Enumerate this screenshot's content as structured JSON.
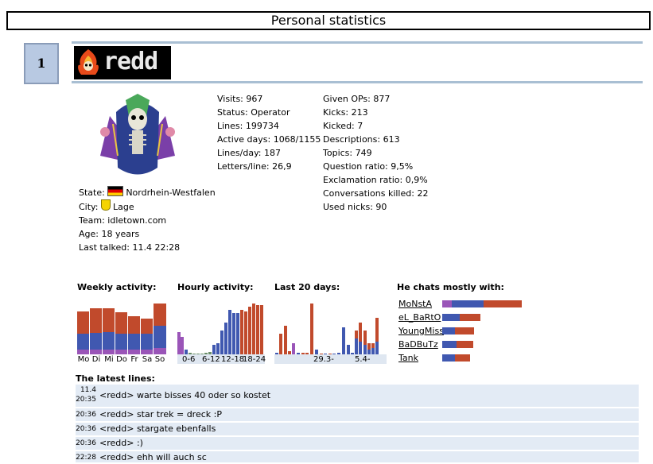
{
  "page": {
    "title": "Personal statistics"
  },
  "user": {
    "rank": "1",
    "nick": "redd",
    "state_label": "State:",
    "state": "Nordrhein-Westfalen",
    "city_label": "City:",
    "city": "Lage",
    "team_label": "Team:",
    "team": "idletown.com",
    "age_label": "Age:",
    "age": "18 years",
    "last_label": "Last talked:",
    "last": "11.4 22:28"
  },
  "stats_left": [
    "Visits: 967",
    "Status: Operator",
    "Lines: 199734",
    "Active days: 1068/1155",
    "Lines/day: 187",
    "Letters/line: 26,9"
  ],
  "stats_right": [
    "Given OPs: 877",
    "Kicks: 213",
    "Kicked: 7",
    "Descriptions: 613",
    "Topics: 749",
    "Question ratio: 9,5%",
    "Exclamation ratio: 0,9%",
    "Conversations killed: 22",
    "Used nicks: 90"
  ],
  "sections": {
    "weekly": "Weekly activity:",
    "hourly": "Hourly activity:",
    "last20": "Last 20 days:",
    "chats": "He chats mostly with:",
    "latest": "The latest lines:"
  },
  "weekly_days": [
    "Mo",
    "Di",
    "Mi",
    "Do",
    "Fr",
    "Sa",
    "So"
  ],
  "hourly_labels": [
    "0-6",
    "6-12",
    "12-18",
    "18-24"
  ],
  "last20_labels": [
    "29.3-",
    "5.4-"
  ],
  "chat_partners": [
    "MoNstA",
    "eL_BaRtO",
    "YoungMiss",
    "BaDBuTz",
    "Tank"
  ],
  "latest_lines": [
    {
      "time_top": "11.4",
      "time": "20:35",
      "text": "<redd> warte bisses 40 oder so kostet"
    },
    {
      "time": "20:36",
      "text": "<redd> star trek = dreck :P"
    },
    {
      "time": "20:36",
      "text": "<redd> stargate ebenfalls"
    },
    {
      "time": "20:36",
      "text": "<redd> :)"
    },
    {
      "time": "22:28",
      "text": "<redd> ehh will auch sc"
    }
  ],
  "colors": {
    "red": "#c14a2c",
    "blue": "#4058b0",
    "purple": "#9a55b8",
    "row_bg": "#e3ebf5",
    "rule": "#a9bfd3"
  }
}
